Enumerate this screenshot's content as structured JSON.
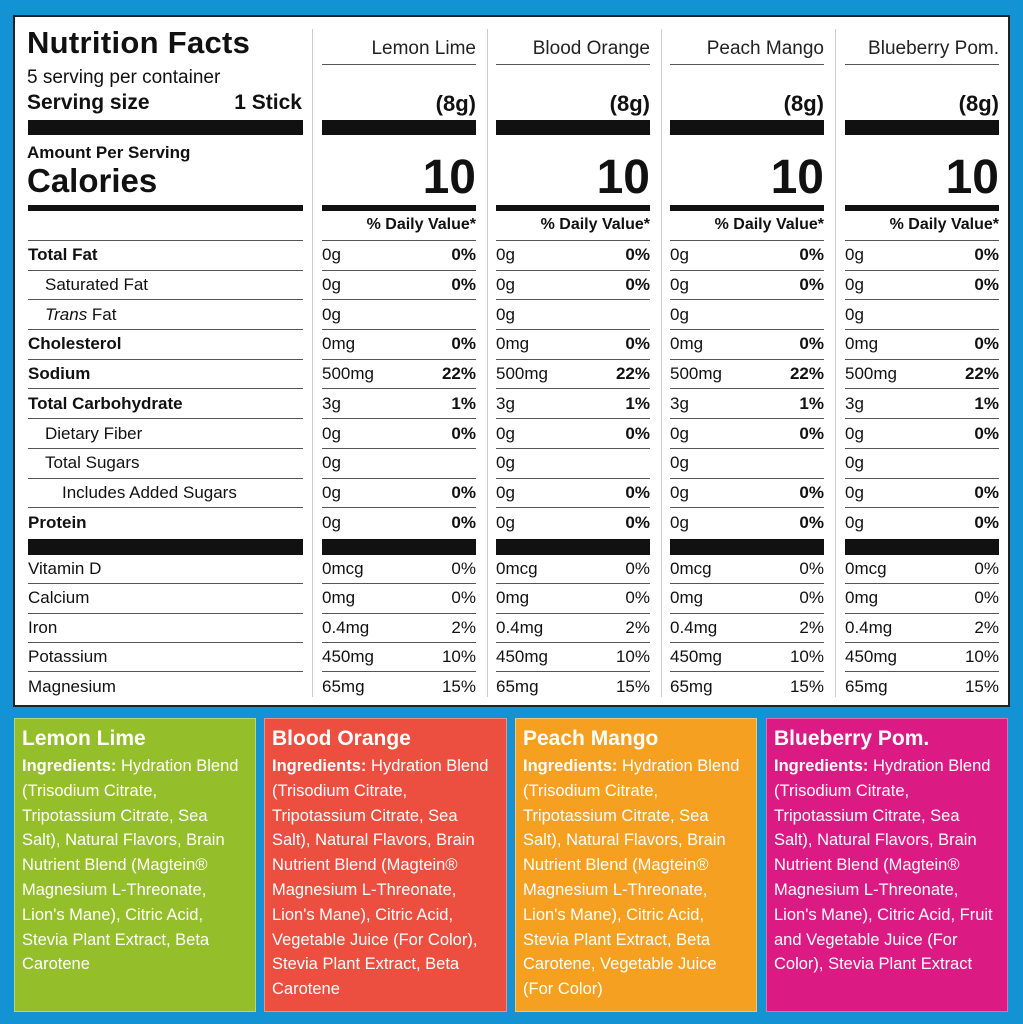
{
  "label": {
    "title": "Nutrition Facts",
    "servings_per_container": "5 serving per container",
    "serving_size_label": "Serving size",
    "serving_size_value": "1 Stick",
    "amount_per_serving": "Amount Per Serving",
    "calories_label": "Calories",
    "daily_value_header": "% Daily Value*"
  },
  "nutrients": [
    {
      "label": "Total Fat",
      "style": "bold"
    },
    {
      "label": "Saturated Fat",
      "style": "indent"
    },
    {
      "label_italic": "Trans",
      "label": " Fat",
      "style": "indent"
    },
    {
      "label": "Cholesterol",
      "style": "bold"
    },
    {
      "label": "Sodium",
      "style": "bold"
    },
    {
      "label": "Total Carbohydrate",
      "style": "bold"
    },
    {
      "label": "Dietary Fiber",
      "style": "indent"
    },
    {
      "label": "Total Sugars",
      "style": "indent"
    },
    {
      "label": "Includes Added Sugars",
      "style": "indent2"
    },
    {
      "label": "Protein",
      "style": "bold"
    }
  ],
  "vitamins": [
    {
      "label": "Vitamin D"
    },
    {
      "label": "Calcium"
    },
    {
      "label": "Iron"
    },
    {
      "label": "Potassium"
    },
    {
      "label": "Magnesium"
    }
  ],
  "products": [
    {
      "name": "Lemon Lime",
      "serving": "(8g)",
      "calories": "10",
      "color": "#95bf2a",
      "nutrients": [
        [
          "0g",
          "0%"
        ],
        [
          "0g",
          "0%"
        ],
        [
          "0g",
          ""
        ],
        [
          "0mg",
          "0%"
        ],
        [
          "500mg",
          "22%"
        ],
        [
          "3g",
          "1%"
        ],
        [
          "0g",
          "0%"
        ],
        [
          "0g",
          ""
        ],
        [
          "0g",
          "0%"
        ],
        [
          "0g",
          "0%"
        ]
      ],
      "vitamins": [
        [
          "0mcg",
          "0%"
        ],
        [
          "0mg",
          "0%"
        ],
        [
          "0.4mg",
          "2%"
        ],
        [
          "450mg",
          "10%"
        ],
        [
          "65mg",
          "15%"
        ]
      ],
      "ingredients_label": "Ingredients:",
      "ingredients": "Hydration Blend (Trisodium Citrate, Tripotassium Citrate, Sea Salt), Natural Flavors, Brain Nutrient Blend (Magtein® Magnesium L-Threonate, Lion's Mane), Citric Acid, Stevia Plant Extract, Beta Carotene"
    },
    {
      "name": "Blood Orange",
      "serving": "(8g)",
      "calories": "10",
      "color": "#ec4f3f",
      "nutrients": [
        [
          "0g",
          "0%"
        ],
        [
          "0g",
          "0%"
        ],
        [
          "0g",
          ""
        ],
        [
          "0mg",
          "0%"
        ],
        [
          "500mg",
          "22%"
        ],
        [
          "3g",
          "1%"
        ],
        [
          "0g",
          "0%"
        ],
        [
          "0g",
          ""
        ],
        [
          "0g",
          "0%"
        ],
        [
          "0g",
          "0%"
        ]
      ],
      "vitamins": [
        [
          "0mcg",
          "0%"
        ],
        [
          "0mg",
          "0%"
        ],
        [
          "0.4mg",
          "2%"
        ],
        [
          "450mg",
          "10%"
        ],
        [
          "65mg",
          "15%"
        ]
      ],
      "ingredients_label": "Ingredients:",
      "ingredients": "Hydration Blend (Trisodium Citrate, Tripotassium Citrate, Sea Salt), Natural Flavors, Brain Nutrient Blend (Magtein® Magnesium L-Threonate, Lion's Mane), Citric Acid, Vegetable Juice (For Color), Stevia Plant Extract, Beta Carotene"
    },
    {
      "name": "Peach Mango",
      "serving": "(8g)",
      "calories": "10",
      "color": "#f5a020",
      "nutrients": [
        [
          "0g",
          "0%"
        ],
        [
          "0g",
          "0%"
        ],
        [
          "0g",
          ""
        ],
        [
          "0mg",
          "0%"
        ],
        [
          "500mg",
          "22%"
        ],
        [
          "3g",
          "1%"
        ],
        [
          "0g",
          "0%"
        ],
        [
          "0g",
          ""
        ],
        [
          "0g",
          "0%"
        ],
        [
          "0g",
          "0%"
        ]
      ],
      "vitamins": [
        [
          "0mcg",
          "0%"
        ],
        [
          "0mg",
          "0%"
        ],
        [
          "0.4mg",
          "2%"
        ],
        [
          "450mg",
          "10%"
        ],
        [
          "65mg",
          "15%"
        ]
      ],
      "ingredients_label": "Ingredients:",
      "ingredients": "Hydration Blend (Trisodium Citrate, Tripotassium Citrate, Sea Salt), Natural Flavors, Brain Nutrient Blend (Magtein® Magnesium L-Threonate, Lion's Mane), Citric Acid, Stevia Plant Extract, Beta Carotene, Vegetable Juice (For Color)"
    },
    {
      "name": "Blueberry Pom.",
      "serving": "(8g)",
      "calories": "10",
      "color": "#dc1a84",
      "nutrients": [
        [
          "0g",
          "0%"
        ],
        [
          "0g",
          "0%"
        ],
        [
          "0g",
          ""
        ],
        [
          "0mg",
          "0%"
        ],
        [
          "500mg",
          "22%"
        ],
        [
          "3g",
          "1%"
        ],
        [
          "0g",
          "0%"
        ],
        [
          "0g",
          ""
        ],
        [
          "0g",
          "0%"
        ],
        [
          "0g",
          "0%"
        ]
      ],
      "vitamins": [
        [
          "0mcg",
          "0%"
        ],
        [
          "0mg",
          "0%"
        ],
        [
          "0.4mg",
          "2%"
        ],
        [
          "450mg",
          "10%"
        ],
        [
          "65mg",
          "15%"
        ]
      ],
      "ingredients_label": "Ingredients:",
      "ingredients": "Hydration Blend (Trisodium Citrate, Tripotassium Citrate, Sea Salt), Natural Flavors, Brain Nutrient Blend (Magtein® Magnesium L-Threonate, Lion's Mane), Citric Acid, Fruit and Vegetable Juice (For Color), Stevia Plant Extract"
    }
  ]
}
